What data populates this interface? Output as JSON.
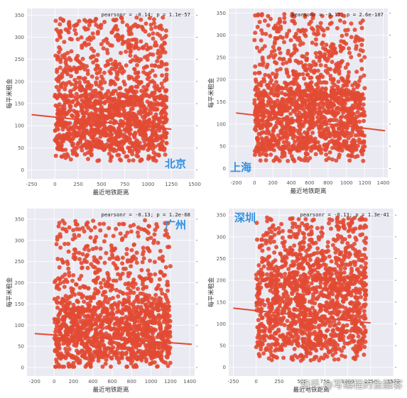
{
  "colors": {
    "point": "#e24a33",
    "line": "#e24a33",
    "plot_bg": "#eaeaf2",
    "grid": "#ffffff",
    "city_label": "#2f8fe0"
  },
  "watermark": "知乎 @写编程的金融客",
  "chart_data": [
    {
      "type": "scatter",
      "city": "北京",
      "stat_text": "pearsonr = -0.14; p = 1.1e-57",
      "xlabel": "最近地铁距离",
      "ylabel": "每平米租金",
      "xlim": [
        -300,
        1500
      ],
      "ylim": [
        -20,
        365
      ],
      "xticks": [
        -250,
        0,
        250,
        500,
        750,
        1000,
        1250,
        1500
      ],
      "yticks": [
        0,
        50,
        100,
        150,
        200,
        250,
        300,
        350
      ],
      "x_range": [
        0,
        1200
      ],
      "y_core": [
        45,
        165
      ],
      "y_max": 345,
      "regression": {
        "x": [
          -250,
          1250
        ],
        "y": [
          125,
          92
        ]
      },
      "grid": true
    },
    {
      "type": "scatter",
      "city": "上海",
      "stat_text": "pearsonr = -0.17; p = 2.6e-107",
      "xlabel": "最近地铁距离",
      "ylabel": "每平米租金",
      "xlim": [
        -280,
        1450
      ],
      "ylim": [
        -20,
        360
      ],
      "xticks": [
        -200,
        0,
        200,
        400,
        600,
        800,
        1000,
        1200,
        1400
      ],
      "yticks": [
        0,
        50,
        100,
        150,
        200,
        250,
        300,
        350
      ],
      "x_range": [
        0,
        1200
      ],
      "y_core": [
        40,
        165
      ],
      "y_max": 348,
      "regression": {
        "x": [
          -200,
          1420
        ],
        "y": [
          125,
          85
        ]
      },
      "grid": true
    },
    {
      "type": "scatter",
      "city": "广州",
      "stat_text": "pearsonr = -0.13; p = 1.2e-68",
      "xlabel": "最近地铁距离",
      "ylabel": "每平米租金",
      "xlim": [
        -280,
        1450
      ],
      "ylim": [
        -20,
        375
      ],
      "xticks": [
        -200,
        0,
        200,
        400,
        600,
        800,
        1000,
        1200,
        1400
      ],
      "yticks": [
        0,
        50,
        100,
        150,
        200,
        250,
        300,
        350
      ],
      "x_range": [
        0,
        1200
      ],
      "y_core": [
        20,
        135
      ],
      "y_max": 350,
      "regression": {
        "x": [
          -200,
          1420
        ],
        "y": [
          80,
          55
        ]
      },
      "grid": true
    },
    {
      "type": "scatter",
      "city": "深圳",
      "stat_text": "pearsonr = -0.13; p = 1.3e-41",
      "xlabel": "最近地铁距离",
      "ylabel": "每平米租金",
      "xlim": [
        -300,
        1500
      ],
      "ylim": [
        -20,
        365
      ],
      "xticks": [
        -250,
        0,
        250,
        500,
        750,
        1000,
        1250,
        1500
      ],
      "yticks": [
        0,
        50,
        100,
        150,
        200,
        250,
        300,
        350
      ],
      "x_range": [
        0,
        1200
      ],
      "y_core": [
        40,
        200
      ],
      "y_max": 345,
      "regression": {
        "x": [
          -250,
          1250
        ],
        "y": [
          136,
          102
        ]
      },
      "grid": true
    }
  ]
}
